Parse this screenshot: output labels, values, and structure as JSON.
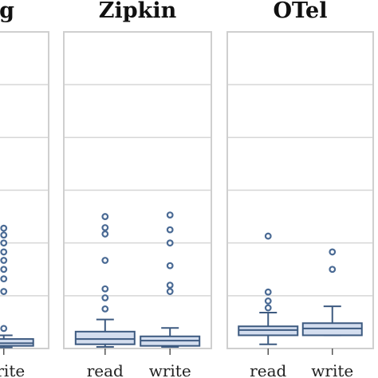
{
  "chart_data": {
    "type": "box",
    "categories": [
      "read",
      "write"
    ],
    "ylim": [
      0,
      6
    ],
    "grid": true,
    "panels": [
      {
        "title": "Tracing",
        "series": [
          {
            "category": "read",
            "min": 0,
            "q1": 0,
            "median": 0,
            "q3": 0,
            "max": 0,
            "outliers": []
          },
          {
            "category": "write",
            "min": 0.02,
            "q1": 0.05,
            "median": 0.1,
            "q3": 0.18,
            "max": 0.25,
            "outliers": [
              0.38,
              1.08,
              1.32,
              1.5,
              1.67,
              1.83,
              2.0,
              2.15,
              2.28
            ]
          }
        ]
      },
      {
        "title": "Zipkin",
        "series": [
          {
            "category": "read",
            "min": 0.03,
            "q1": 0.08,
            "median": 0.18,
            "q3": 0.32,
            "max": 0.55,
            "outliers": [
              0.75,
              0.96,
              1.13,
              1.67,
              2.17,
              2.29,
              2.5
            ]
          },
          {
            "category": "write",
            "min": 0.03,
            "q1": 0.05,
            "median": 0.15,
            "q3": 0.23,
            "max": 0.39,
            "outliers": [
              1.08,
              1.2,
              1.57,
              2.0,
              2.25,
              2.53
            ]
          }
        ]
      },
      {
        "title": "OTel",
        "series": [
          {
            "category": "read",
            "min": 0.08,
            "q1": 0.25,
            "median": 0.35,
            "q3": 0.42,
            "max": 0.68,
            "outliers": [
              0.77,
              0.9,
              1.07,
              2.13
            ]
          },
          {
            "category": "write",
            "min": 0.25,
            "q1": 0.25,
            "median": 0.38,
            "q3": 0.48,
            "max": 0.8,
            "outliers": [
              1.5,
              1.83
            ]
          }
        ]
      }
    ]
  }
}
